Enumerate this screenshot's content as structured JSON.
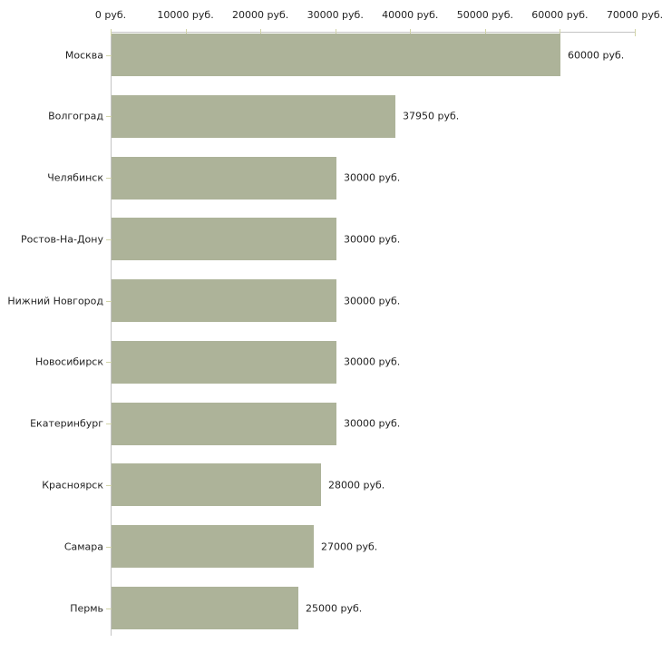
{
  "chart_data": {
    "type": "bar",
    "orientation": "horizontal",
    "title": "",
    "xlabel": "",
    "ylabel": "",
    "categories": [
      "Москва",
      "Волгоград",
      "Челябинск",
      "Ростов-На-Дону",
      "Нижний Новгород",
      "Новосибирск",
      "Екатеринбург",
      "Красноярск",
      "Самара",
      "Пермь"
    ],
    "values": [
      60000,
      37950,
      30000,
      30000,
      30000,
      30000,
      30000,
      28000,
      27000,
      25000
    ],
    "value_labels": [
      "60000 руб.",
      "37950 руб.",
      "30000 руб.",
      "30000 руб.",
      "30000 руб.",
      "30000 руб.",
      "30000 руб.",
      "28000 руб.",
      "27000 руб.",
      "25000 руб."
    ],
    "x_ticks": [
      "0 руб.",
      "10000 руб.",
      "20000 руб.",
      "30000 руб.",
      "40000 руб.",
      "50000 руб.",
      "60000 руб.",
      "70000 руб."
    ],
    "x_tick_values": [
      0,
      10000,
      20000,
      30000,
      40000,
      50000,
      60000,
      70000
    ],
    "xlim": [
      0,
      70000
    ],
    "grid": "off",
    "legend": "none",
    "colors": {
      "bar_fill": "#adb399",
      "axis_line": "#c4c4c4",
      "tick_mark": "#d2d4a8",
      "text": "#1f1f1f",
      "background": "#ffffff"
    }
  }
}
